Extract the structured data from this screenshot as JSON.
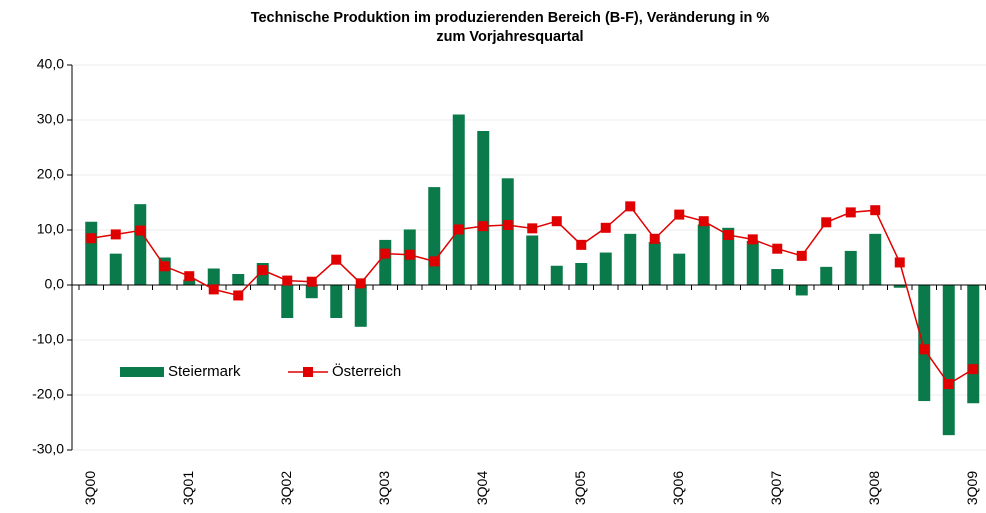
{
  "chart_data": {
    "type": "bar-line",
    "title": [
      "Technische Produktion im produzierenden Bereich (B-F), Veränderung in %",
      "zum Vorjahresquartal"
    ],
    "categories": [
      "3Q00",
      null,
      null,
      null,
      "3Q01",
      null,
      null,
      null,
      "3Q02",
      null,
      null,
      null,
      "3Q03",
      null,
      null,
      null,
      "3Q04",
      null,
      null,
      null,
      "3Q05",
      null,
      null,
      null,
      "3Q06",
      null,
      null,
      null,
      "3Q07",
      null,
      null,
      null,
      "3Q08",
      null,
      null,
      null,
      "3Q09"
    ],
    "series": [
      {
        "name": "Steiermark",
        "type": "bar",
        "color": "#0a7a4a",
        "values": [
          11.5,
          5.7,
          14.7,
          5.0,
          1.0,
          3.0,
          2.0,
          4.0,
          -6.0,
          -2.4,
          -6.0,
          -7.6,
          8.2,
          10.1,
          17.8,
          31.0,
          28.0,
          19.4,
          9.0,
          3.5,
          4.0,
          5.9,
          9.3,
          7.8,
          5.7,
          11.0,
          10.4,
          8.0,
          2.9,
          -1.9,
          3.3,
          6.2,
          9.3,
          -0.5,
          -21.1,
          -27.3,
          -21.5
        ]
      },
      {
        "name": "Österreich",
        "type": "line",
        "color": "#e00000",
        "values": [
          8.5,
          9.2,
          9.9,
          3.4,
          1.6,
          -0.8,
          -1.9,
          2.7,
          0.8,
          0.6,
          4.6,
          0.3,
          5.7,
          5.5,
          4.3,
          10.1,
          10.7,
          10.9,
          10.3,
          11.6,
          7.3,
          10.4,
          14.3,
          8.4,
          12.8,
          11.6,
          9.1,
          8.3,
          6.6,
          5.3,
          11.4,
          13.2,
          13.6,
          4.1,
          -11.7,
          -18.0,
          -15.3
        ]
      }
    ],
    "ylim": [
      -30,
      40
    ],
    "yticks": [
      {
        "value": -30,
        "label": "-30,0"
      },
      {
        "value": -20,
        "label": "-20,0"
      },
      {
        "value": -10,
        "label": "-10,0"
      },
      {
        "value": 0,
        "label": "0,0"
      },
      {
        "value": 10,
        "label": "10,0"
      },
      {
        "value": 20,
        "label": "20,0"
      },
      {
        "value": 30,
        "label": "30,0"
      },
      {
        "value": 40,
        "label": "40,0"
      }
    ],
    "grid": true,
    "legend": "left"
  }
}
